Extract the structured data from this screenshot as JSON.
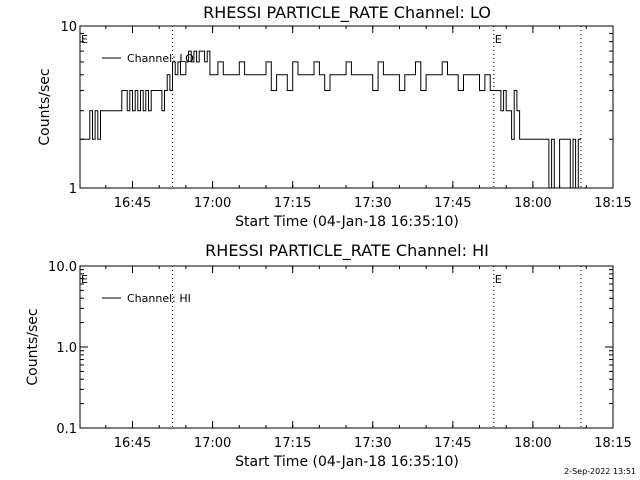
{
  "chart_data": [
    {
      "type": "line",
      "title": "RHESSI PARTICLE_RATE Channel: LO",
      "xlabel": "Start Time (04-Jan-18 16:35:10)",
      "ylabel": "Counts/sec",
      "yscale": "log",
      "ylim": [
        1,
        10
      ],
      "y_ticks": [
        "1",
        "10"
      ],
      "xlim": [
        "16:35:10",
        "18:15:00"
      ],
      "x_ticks": [
        "16:45",
        "17:00",
        "17:15",
        "17:30",
        "17:45",
        "18:00",
        "18:15"
      ],
      "series": [
        {
          "name": "Channel: LO",
          "color": "#000000",
          "x": [
            "16:35:10",
            "16:36:00",
            "16:37:00",
            "16:37:30",
            "16:38:00",
            "16:38:30",
            "16:39:00",
            "16:40:00",
            "16:41:00",
            "16:42:00",
            "16:43:00",
            "16:44:00",
            "16:44:30",
            "16:45:00",
            "16:45:30",
            "16:46:00",
            "16:46:30",
            "16:47:00",
            "16:47:30",
            "16:48:00",
            "16:48:30",
            "16:49:00",
            "16:49:30",
            "16:50:00",
            "16:50:30",
            "16:51:00",
            "16:51:30",
            "16:52:00",
            "16:52:30",
            "16:53:00",
            "16:53:30",
            "16:54:00",
            "16:55:00",
            "16:55:30",
            "16:56:00",
            "16:56:30",
            "16:57:00",
            "16:57:30",
            "16:58:00",
            "16:58:30",
            "16:59:00",
            "16:59:30",
            "17:00:00",
            "17:00:30",
            "17:01:00",
            "17:02:00",
            "17:03:00",
            "17:04:00",
            "17:05:00",
            "17:06:00",
            "17:07:00",
            "17:08:00",
            "17:09:00",
            "17:10:00",
            "17:11:00",
            "17:12:00",
            "17:13:00",
            "17:14:00",
            "17:15:00",
            "17:16:00",
            "17:17:00",
            "17:18:00",
            "17:19:00",
            "17:20:00",
            "17:21:00",
            "17:22:00",
            "17:23:00",
            "17:24:00",
            "17:25:00",
            "17:26:00",
            "17:27:00",
            "17:28:00",
            "17:29:00",
            "17:30:00",
            "17:31:00",
            "17:32:00",
            "17:33:00",
            "17:34:00",
            "17:35:00",
            "17:36:00",
            "17:37:00",
            "17:38:00",
            "17:39:00",
            "17:40:00",
            "17:41:00",
            "17:42:00",
            "17:43:00",
            "17:44:00",
            "17:45:00",
            "17:46:00",
            "17:47:00",
            "17:48:00",
            "17:49:00",
            "17:50:00",
            "17:51:00",
            "17:52:00",
            "17:53:00",
            "17:53:30",
            "17:54:00",
            "17:54:30",
            "17:55:00",
            "17:55:30",
            "17:56:00",
            "17:56:30",
            "17:57:00",
            "17:57:30",
            "17:58:00",
            "17:59:00",
            "18:00:00",
            "18:01:00",
            "18:02:00",
            "18:02:30",
            "18:03:00",
            "18:03:30",
            "18:04:00",
            "18:05:00",
            "18:06:00",
            "18:06:30",
            "18:07:00",
            "18:07:30",
            "18:08:00",
            "18:08:30",
            "18:09:00"
          ],
          "y": [
            2,
            2,
            3,
            2,
            3,
            2,
            3,
            3,
            3,
            3,
            4,
            3,
            4,
            3,
            4,
            3,
            4,
            3,
            4,
            3,
            4,
            4,
            4,
            4,
            3,
            4,
            5,
            4,
            6,
            5,
            6,
            5,
            6,
            7,
            6,
            7,
            6,
            7,
            7,
            6,
            7,
            5,
            5,
            5,
            6,
            5,
            5,
            5,
            6,
            5,
            5,
            5,
            5,
            6,
            4,
            5,
            5,
            4,
            6,
            5,
            5,
            5,
            6,
            5,
            4,
            5,
            5,
            5,
            6,
            5,
            5,
            5,
            5,
            4,
            6,
            5,
            5,
            5,
            4,
            5,
            5,
            6,
            4,
            5,
            5,
            5,
            6,
            5,
            5,
            4,
            5,
            5,
            5,
            4,
            5,
            4,
            4,
            4,
            3,
            4,
            3,
            3,
            2,
            4,
            3,
            2,
            2,
            2,
            2,
            2,
            2,
            2,
            1,
            2,
            1,
            2,
            2,
            2,
            1,
            2,
            1,
            2,
            2
          ]
        }
      ],
      "event_markers": [
        {
          "label": "E",
          "time": "16:35:10"
        },
        {
          "label": "E",
          "time": "17:52:40"
        }
      ],
      "dotted_lines": [
        "16:52:30",
        "17:52:40",
        "18:09:00"
      ]
    },
    {
      "type": "line",
      "title": "RHESSI PARTICLE_RATE Channel: HI",
      "xlabel": "Start Time (04-Jan-18 16:35:10)",
      "ylabel": "Counts/sec",
      "yscale": "log",
      "ylim": [
        0.1,
        10
      ],
      "y_ticks": [
        "0.1",
        "1.0",
        "10.0"
      ],
      "xlim": [
        "16:35:10",
        "18:15:00"
      ],
      "x_ticks": [
        "16:45",
        "17:00",
        "17:15",
        "17:30",
        "17:45",
        "18:00",
        "18:15"
      ],
      "series": [
        {
          "name": "Channel: HI",
          "color": "#000000",
          "x": [],
          "y": []
        }
      ],
      "event_markers": [
        {
          "label": "E",
          "time": "16:35:10"
        },
        {
          "label": "E",
          "time": "17:52:40"
        }
      ],
      "dotted_lines": [
        "16:52:30",
        "17:52:40",
        "18:09:00"
      ]
    }
  ],
  "footer": {
    "date_stamp": "2-Sep-2022 13:51"
  }
}
